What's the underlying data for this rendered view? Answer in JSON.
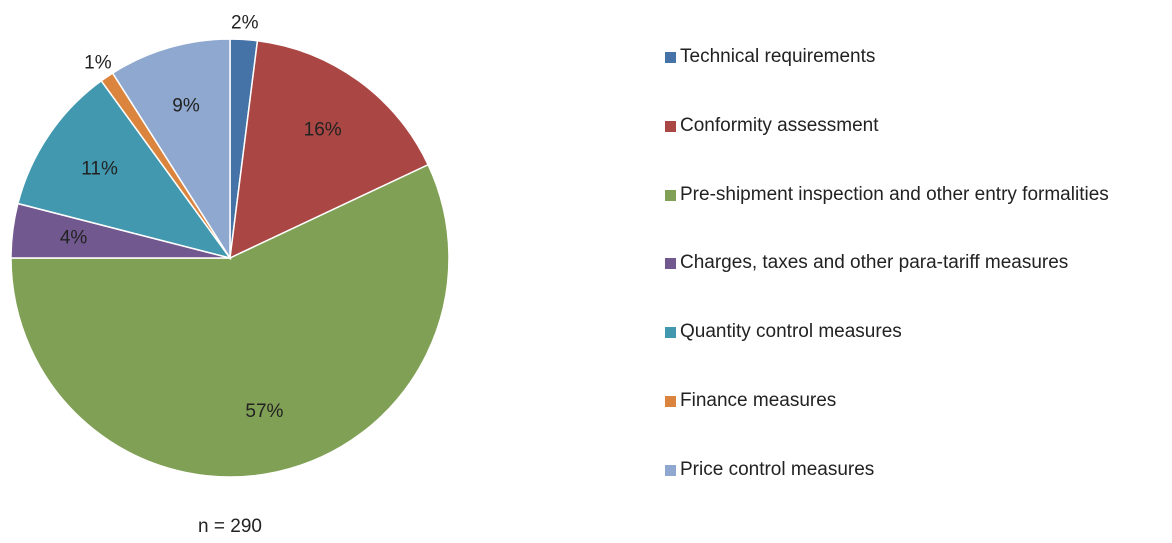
{
  "chart_data": {
    "type": "pie",
    "categories": [
      "Technical requirements",
      "Conformity assessment",
      "Pre-shipment inspection and other entry formalities",
      "Charges, taxes and other para-tariff measures",
      "Quantity control measures",
      "Finance measures",
      "Price control measures"
    ],
    "values": [
      2,
      16,
      57,
      4,
      11,
      1,
      9
    ],
    "value_labels": [
      "2%",
      "16%",
      "57%",
      "4%",
      "11%",
      "1%",
      "9%"
    ],
    "colors": [
      "#4572a7",
      "#aa4643",
      "#80a055",
      "#71588f",
      "#4198af",
      "#db843d",
      "#8fa8cf"
    ],
    "annotation": "n = 290",
    "legend": "right"
  }
}
